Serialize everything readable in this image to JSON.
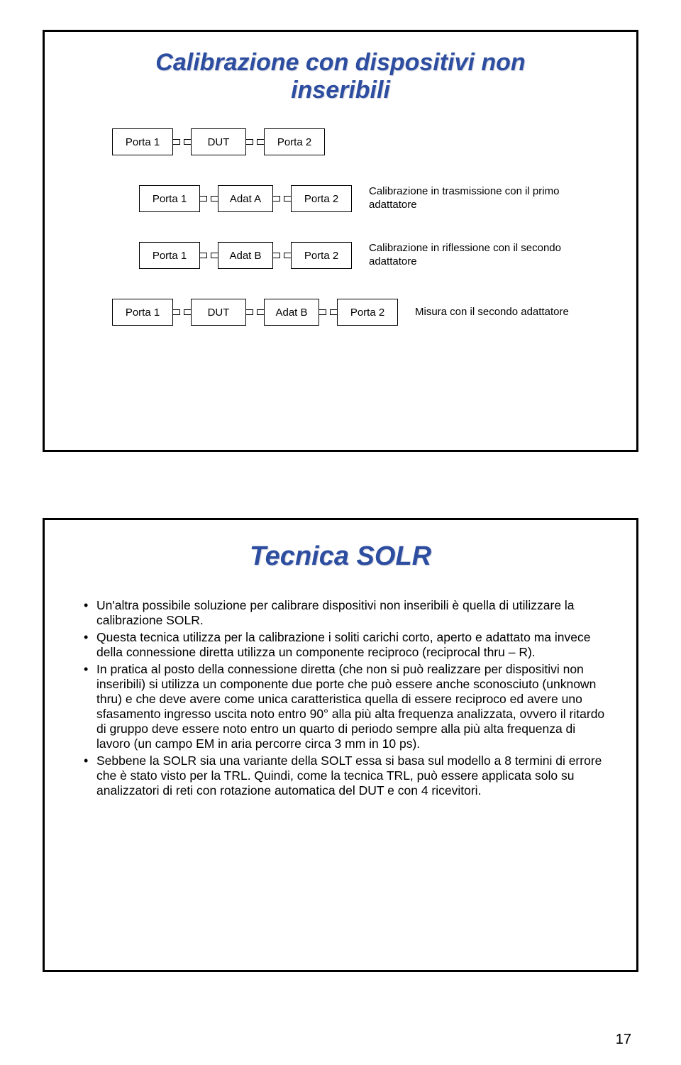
{
  "slide1": {
    "title_line1": "Calibrazione con dispositivi non",
    "title_line2": "inseribili",
    "rows": [
      {
        "boxes": [
          "Porta 1",
          "DUT",
          "Porta 2"
        ],
        "desc": ""
      },
      {
        "boxes": [
          "Porta 1",
          "Adat A",
          "Porta 2"
        ],
        "desc": "Calibrazione in trasmissione con il primo adattatore"
      },
      {
        "boxes": [
          "Porta 1",
          "Adat B",
          "Porta 2"
        ],
        "desc": "Calibrazione in riflessione con il secondo adattatore"
      },
      {
        "boxes": [
          "Porta 1",
          "DUT",
          "Adat B",
          "Porta 2"
        ],
        "desc": "Misura con il secondo adattatore"
      }
    ]
  },
  "slide2": {
    "title": "Tecnica SOLR",
    "bullets": [
      "Un'altra possibile soluzione per calibrare dispositivi non inseribili è quella di utilizzare la calibrazione SOLR.",
      "Questa tecnica utilizza per la calibrazione i soliti carichi corto, aperto e adattato ma invece della connessione diretta utilizza un componente reciproco (reciprocal thru – R).",
      "In pratica al posto della connessione diretta (che non si può realizzare per dispositivi non inseribili) si utilizza un componente due porte che può essere anche sconosciuto (unknown thru) e che deve avere come unica caratteristica quella di essere reciproco ed avere uno sfasamento ingresso uscita noto entro 90° alla più alta frequenza analizzata, ovvero il ritardo di gruppo deve essere noto entro un quarto di periodo sempre alla più alta frequenza di lavoro (un campo EM in aria percorre circa 3 mm in 10 ps).",
      "Sebbene la SOLR sia una variante della SOLT essa si basa sul modello a 8 termini di errore che è stato visto per la TRL. Quindi, come la tecnica TRL, può essere applicata solo su analizzatori di reti con rotazione automatica del DUT e con 4 ricevitori."
    ]
  },
  "page_number": "17",
  "colors": {
    "title_color": "#2d4ea0",
    "border_color": "#000000",
    "bg": "#ffffff"
  }
}
